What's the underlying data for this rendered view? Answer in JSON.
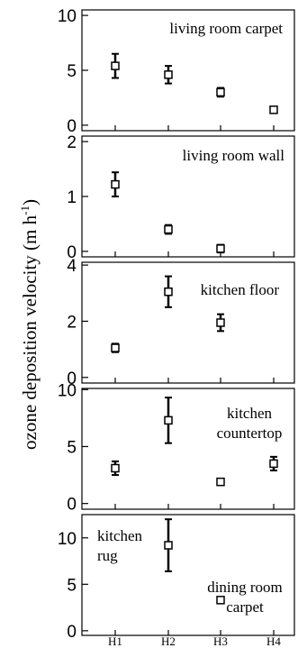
{
  "chart_data": [
    {
      "type": "scatter",
      "panel": "living room carpet",
      "label_lines": [
        "living room carpet"
      ],
      "label_position": "top-right",
      "categories": [
        "H1",
        "H2",
        "H3",
        "H4"
      ],
      "points": [
        {
          "x": "H1",
          "y": 5.4,
          "err": 1.1
        },
        {
          "x": "H2",
          "y": 4.6,
          "err": 0.8
        },
        {
          "x": "H3",
          "y": 3.0,
          "err": 0.4
        },
        {
          "x": "H4",
          "y": 1.4,
          "err": 0.2
        }
      ],
      "ylim": [
        -0.5,
        10.5
      ],
      "yticks": [
        0,
        5,
        10
      ]
    },
    {
      "type": "scatter",
      "panel": "living room wall",
      "label_lines": [
        "living room wall"
      ],
      "label_position": "top-right",
      "categories": [
        "H1",
        "H2",
        "H3",
        "H4"
      ],
      "points": [
        {
          "x": "H1",
          "y": 1.22,
          "err": 0.22
        },
        {
          "x": "H2",
          "y": 0.4,
          "err": 0.08
        },
        {
          "x": "H3",
          "y": 0.05,
          "err": 0.07
        }
      ],
      "ylim": [
        -0.1,
        2.1
      ],
      "yticks": [
        0,
        1,
        2
      ]
    },
    {
      "type": "scatter",
      "panel": "kitchen floor",
      "label_lines": [
        "kitchen floor"
      ],
      "label_position": "top-right",
      "categories": [
        "H1",
        "H2",
        "H3",
        "H4"
      ],
      "points": [
        {
          "x": "H1",
          "y": 1.05,
          "err": 0.15
        },
        {
          "x": "H2",
          "y": 3.05,
          "err": 0.55
        },
        {
          "x": "H3",
          "y": 1.95,
          "err": 0.3
        }
      ],
      "ylim": [
        -0.2,
        4.1
      ],
      "yticks": [
        0,
        2,
        4
      ]
    },
    {
      "type": "scatter",
      "panel": "kitchen countertop",
      "label_lines": [
        "kitchen",
        "countertop"
      ],
      "label_position": "top-right",
      "categories": [
        "H1",
        "H2",
        "H3",
        "H4"
      ],
      "points": [
        {
          "x": "H1",
          "y": 3.1,
          "err": 0.6
        },
        {
          "x": "H2",
          "y": 7.3,
          "err": 2.0
        },
        {
          "x": "H3",
          "y": 1.9,
          "err": 0.15
        },
        {
          "x": "H4",
          "y": 3.5,
          "err": 0.6
        }
      ],
      "ylim": [
        -0.5,
        10.1
      ],
      "yticks": [
        0,
        5,
        10
      ]
    },
    {
      "type": "scatter",
      "panel": "kitchen rug / dining room carpet",
      "label_lines": [
        "kitchen",
        "rug"
      ],
      "label_position": "top-left",
      "label_lines_2": [
        "dining room",
        "carpet"
      ],
      "categories": [
        "H1",
        "H2",
        "H3",
        "H4"
      ],
      "points": [
        {
          "x": "H2",
          "y": 9.2,
          "err": 2.8
        },
        {
          "x": "H3",
          "y": 3.3,
          "err": 0.3
        }
      ],
      "ylim": [
        -0.5,
        12.5
      ],
      "yticks": [
        0,
        5,
        10
      ]
    }
  ],
  "ylabel": "ozone deposition velocity (m h",
  "ylabel_sup": "-1",
  "ylabel_close": ")",
  "xtick_labels": [
    "H1",
    "H2",
    "H3",
    "H4"
  ]
}
